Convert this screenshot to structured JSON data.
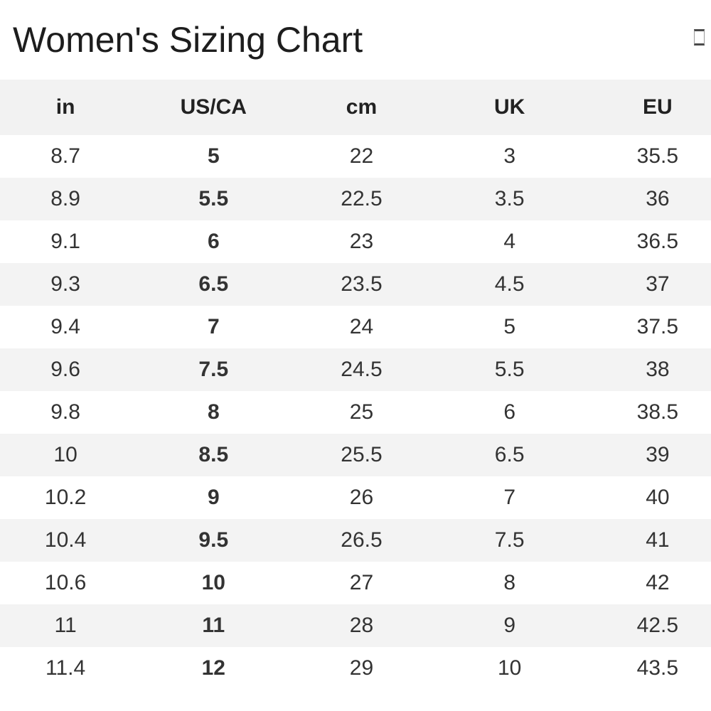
{
  "page": {
    "title": "Women's Sizing Chart",
    "title_icon": "missing-glyph-box"
  },
  "colors": {
    "header_bg": "#f2f2f2",
    "row_stripe_bg": "#f3f3f3",
    "header_text": "#222222",
    "cell_text": "#333333",
    "title_text": "#1d1d1d",
    "page_bg": "#ffffff"
  },
  "chart_data": {
    "type": "table",
    "title": "Women's Sizing Chart",
    "columns": [
      "in",
      "US/CA",
      "cm",
      "UK",
      "EU"
    ],
    "bold_column_index": 1,
    "zebra_striping": "even rows gray, starting white",
    "rows": [
      [
        "8.7",
        "5",
        "22",
        "3",
        "35.5"
      ],
      [
        "8.9",
        "5.5",
        "22.5",
        "3.5",
        "36"
      ],
      [
        "9.1",
        "6",
        "23",
        "4",
        "36.5"
      ],
      [
        "9.3",
        "6.5",
        "23.5",
        "4.5",
        "37"
      ],
      [
        "9.4",
        "7",
        "24",
        "5",
        "37.5"
      ],
      [
        "9.6",
        "7.5",
        "24.5",
        "5.5",
        "38"
      ],
      [
        "9.8",
        "8",
        "25",
        "6",
        "38.5"
      ],
      [
        "10",
        "8.5",
        "25.5",
        "6.5",
        "39"
      ],
      [
        "10.2",
        "9",
        "26",
        "7",
        "40"
      ],
      [
        "10.4",
        "9.5",
        "26.5",
        "7.5",
        "41"
      ],
      [
        "10.6",
        "10",
        "27",
        "8",
        "42"
      ],
      [
        "11",
        "11",
        "28",
        "9",
        "42.5"
      ],
      [
        "11.4",
        "12",
        "29",
        "10",
        "43.5"
      ]
    ]
  }
}
